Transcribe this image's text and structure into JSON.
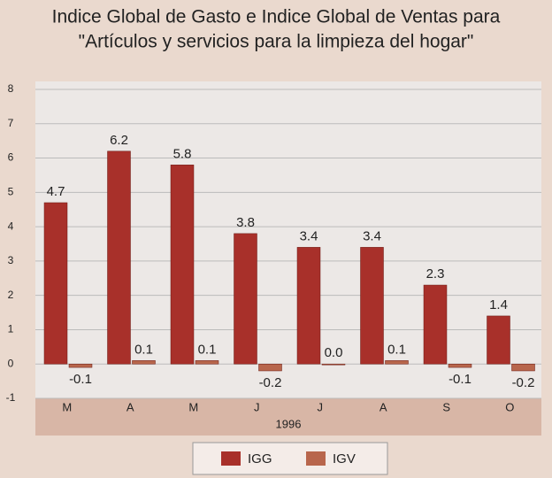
{
  "chart_data": {
    "type": "bar",
    "title": [
      "Indice Global de Gasto e Indice Global de Ventas para",
      "\"Artículos y servicios para la limpieza del hogar\""
    ],
    "xlabel": "1996",
    "categories": [
      "M",
      "A",
      "M",
      "J",
      "J",
      "A",
      "S",
      "O"
    ],
    "series": [
      {
        "name": "IGG",
        "color": "#a8302a",
        "values": [
          4.7,
          6.2,
          5.8,
          3.8,
          3.4,
          3.4,
          2.3,
          1.4
        ]
      },
      {
        "name": "IGV",
        "color": "#b8664c",
        "values": [
          -0.1,
          0.1,
          0.1,
          -0.2,
          0.0,
          0.1,
          -0.1,
          -0.2
        ],
        "value_labels": [
          "-0.1",
          "0.1",
          "0.1",
          "-0.2",
          "0.0",
          "0.1",
          "-0.1",
          "-0.2"
        ]
      }
    ],
    "ylim": [
      -1,
      8
    ],
    "yticks": [
      -1,
      0,
      1,
      2,
      3,
      4,
      5,
      6,
      7,
      8
    ],
    "grid": true
  }
}
